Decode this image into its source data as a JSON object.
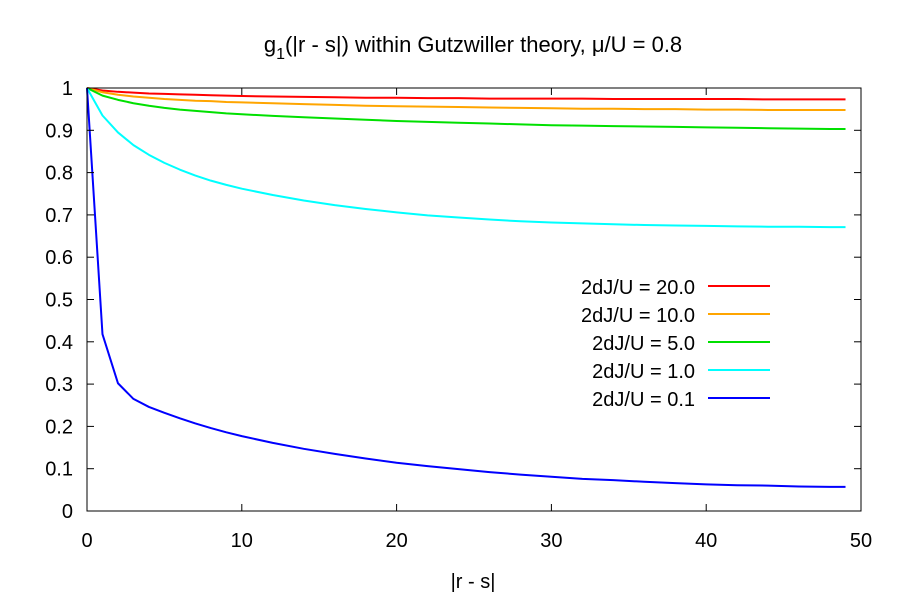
{
  "chart_data": {
    "type": "line",
    "title_prefix": "g",
    "title_subscript": "1",
    "title_suffix": "(|r - s|) within Gutzwiller theory, μ/U = 0.8",
    "xlabel": "|r - s|",
    "ylabel": "",
    "xlim": [
      0,
      50
    ],
    "ylim": [
      0,
      1
    ],
    "x_ticks": [
      0,
      10,
      20,
      30,
      40,
      50
    ],
    "y_ticks": [
      0,
      0.1,
      0.2,
      0.3,
      0.4,
      0.5,
      0.6,
      0.7,
      0.8,
      0.9,
      1
    ],
    "x_tick_labels": [
      "0",
      "10",
      "20",
      "30",
      "40",
      "50"
    ],
    "y_tick_labels": [
      "0",
      "0.1",
      "0.2",
      "0.3",
      "0.4",
      "0.5",
      "0.6",
      "0.7",
      "0.8",
      "0.9",
      "1"
    ],
    "grid": false,
    "legend_position": "right-middle",
    "x": [
      0,
      1,
      2,
      3,
      4,
      5,
      6,
      7,
      8,
      9,
      10,
      12,
      14,
      16,
      18,
      20,
      22,
      24,
      26,
      28,
      30,
      32,
      34,
      36,
      38,
      40,
      42,
      44,
      46,
      48,
      49
    ],
    "series": [
      {
        "name": "2dJ/U = 20.0",
        "color": "#ff0000",
        "values": [
          1.0,
          0.994,
          0.991,
          0.989,
          0.987,
          0.986,
          0.985,
          0.984,
          0.983,
          0.982,
          0.981,
          0.98,
          0.979,
          0.978,
          0.977,
          0.977,
          0.976,
          0.976,
          0.975,
          0.975,
          0.975,
          0.975,
          0.974,
          0.974,
          0.974,
          0.974,
          0.974,
          0.973,
          0.973,
          0.973,
          0.973
        ]
      },
      {
        "name": "2dJ/U = 10.0",
        "color": "#ffa500",
        "values": [
          1.0,
          0.99,
          0.984,
          0.98,
          0.977,
          0.974,
          0.972,
          0.97,
          0.969,
          0.967,
          0.966,
          0.964,
          0.962,
          0.96,
          0.958,
          0.957,
          0.956,
          0.955,
          0.954,
          0.953,
          0.952,
          0.951,
          0.951,
          0.95,
          0.95,
          0.949,
          0.949,
          0.948,
          0.948,
          0.948,
          0.948
        ]
      },
      {
        "name": "2dJ/U = 5.0",
        "color": "#00e000",
        "values": [
          1.0,
          0.982,
          0.972,
          0.964,
          0.958,
          0.953,
          0.949,
          0.946,
          0.943,
          0.94,
          0.938,
          0.934,
          0.931,
          0.928,
          0.925,
          0.922,
          0.92,
          0.918,
          0.916,
          0.914,
          0.912,
          0.911,
          0.91,
          0.909,
          0.908,
          0.907,
          0.906,
          0.905,
          0.904,
          0.903,
          0.903
        ]
      },
      {
        "name": "2dJ/U = 1.0",
        "color": "#00ffff",
        "values": [
          1.0,
          0.935,
          0.895,
          0.865,
          0.842,
          0.823,
          0.807,
          0.793,
          0.781,
          0.771,
          0.762,
          0.747,
          0.734,
          0.723,
          0.714,
          0.706,
          0.699,
          0.694,
          0.689,
          0.685,
          0.682,
          0.68,
          0.678,
          0.676,
          0.675,
          0.674,
          0.673,
          0.672,
          0.672,
          0.671,
          0.671
        ]
      },
      {
        "name": "2dJ/U = 0.1",
        "color": "#0000ff",
        "values": [
          1.0,
          0.418,
          0.302,
          0.265,
          0.246,
          0.232,
          0.219,
          0.207,
          0.196,
          0.186,
          0.177,
          0.161,
          0.147,
          0.135,
          0.124,
          0.114,
          0.106,
          0.099,
          0.092,
          0.086,
          0.081,
          0.076,
          0.073,
          0.069,
          0.066,
          0.063,
          0.061,
          0.06,
          0.058,
          0.057,
          0.057
        ]
      }
    ]
  }
}
